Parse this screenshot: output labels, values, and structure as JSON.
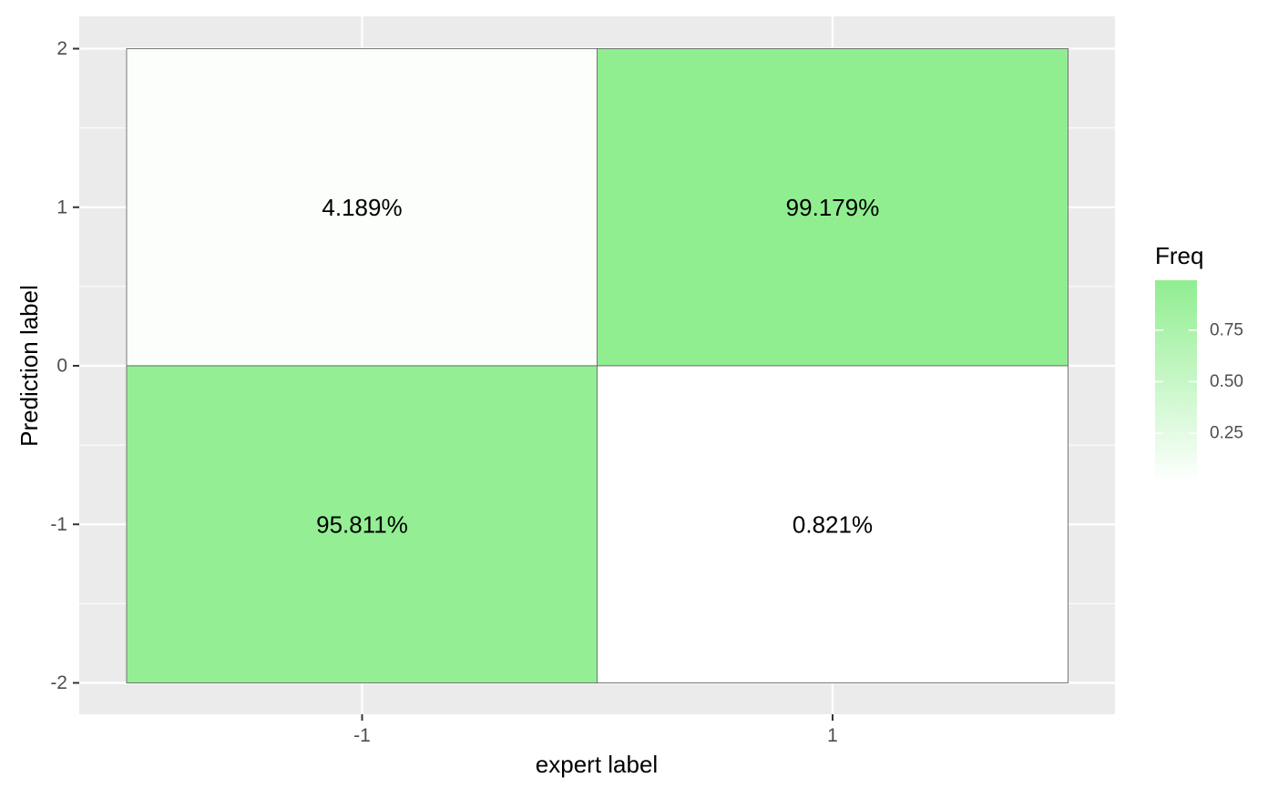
{
  "chart_data": {
    "type": "heatmap",
    "xlabel": "expert label",
    "ylabel": "Prediction label",
    "x_categories": [
      -1,
      1
    ],
    "x_ticks": [
      "-1",
      "1"
    ],
    "ylim": [
      -2,
      2
    ],
    "y_ticks": [
      "-2",
      "-1",
      "0",
      "1",
      "2"
    ],
    "cells": [
      {
        "x": -1,
        "y_range": [
          0,
          2
        ],
        "freq": 0.04189,
        "label": "4.189%"
      },
      {
        "x": 1,
        "y_range": [
          0,
          2
        ],
        "freq": 0.99179,
        "label": "99.179%"
      },
      {
        "x": -1,
        "y_range": [
          -2,
          0
        ],
        "freq": 0.95811,
        "label": "95.811%"
      },
      {
        "x": 1,
        "y_range": [
          -2,
          0
        ],
        "freq": 0.00821,
        "label": "0.821%"
      }
    ],
    "legend": {
      "title": "Freq",
      "ticks": [
        0.25,
        0.5,
        0.75
      ],
      "tick_labels": [
        "0.25",
        "0.50",
        "0.75"
      ],
      "range": [
        0.00821,
        0.99179
      ],
      "low_color": "#ffffff",
      "high_color": "#90ee90"
    },
    "colors": {
      "panel_background": "#ebebeb",
      "grid_major": "#ffffff",
      "tile_border": "#595959"
    },
    "grid": true,
    "legend_position": "right"
  }
}
